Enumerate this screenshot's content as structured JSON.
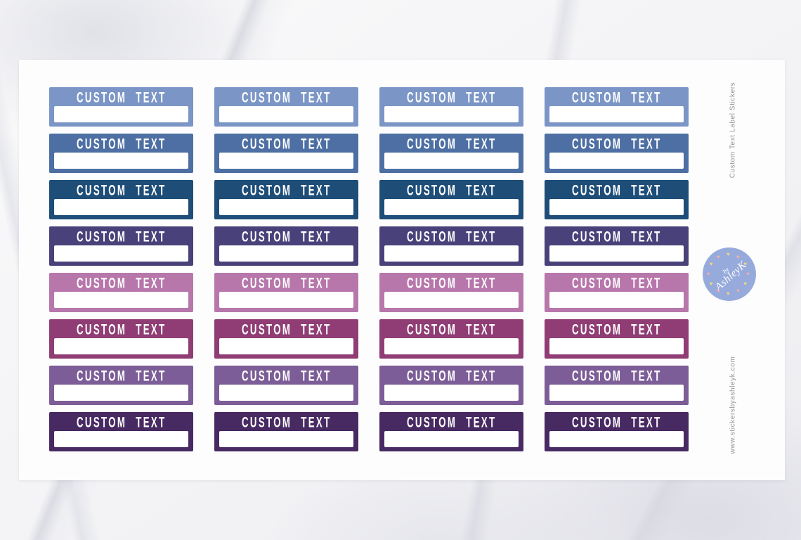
{
  "product": {
    "title": "Custom Text Label Stickers",
    "website": "www.stickersbyashleyk.com"
  },
  "sheet": {
    "sticker_label": "CUSTOM TEXT",
    "columns": 4,
    "rows": [
      {
        "name": "light-blue",
        "color": "#7b96c6"
      },
      {
        "name": "medium-blue",
        "color": "#4d6fa3"
      },
      {
        "name": "navy-blue",
        "color": "#1e4d78"
      },
      {
        "name": "indigo",
        "color": "#494179"
      },
      {
        "name": "orchid-pink",
        "color": "#b777ab"
      },
      {
        "name": "plum",
        "color": "#8f3d74"
      },
      {
        "name": "purple",
        "color": "#7c5d97"
      },
      {
        "name": "dark-purple",
        "color": "#482a62"
      }
    ]
  },
  "logo": {
    "text_by": "by",
    "text_name": "AshleyK",
    "circle_color": "#97aadc",
    "heart_colors": [
      "#f6d780",
      "#f2b0ac"
    ],
    "heart_count": 12,
    "heart_glyph": "♥"
  }
}
